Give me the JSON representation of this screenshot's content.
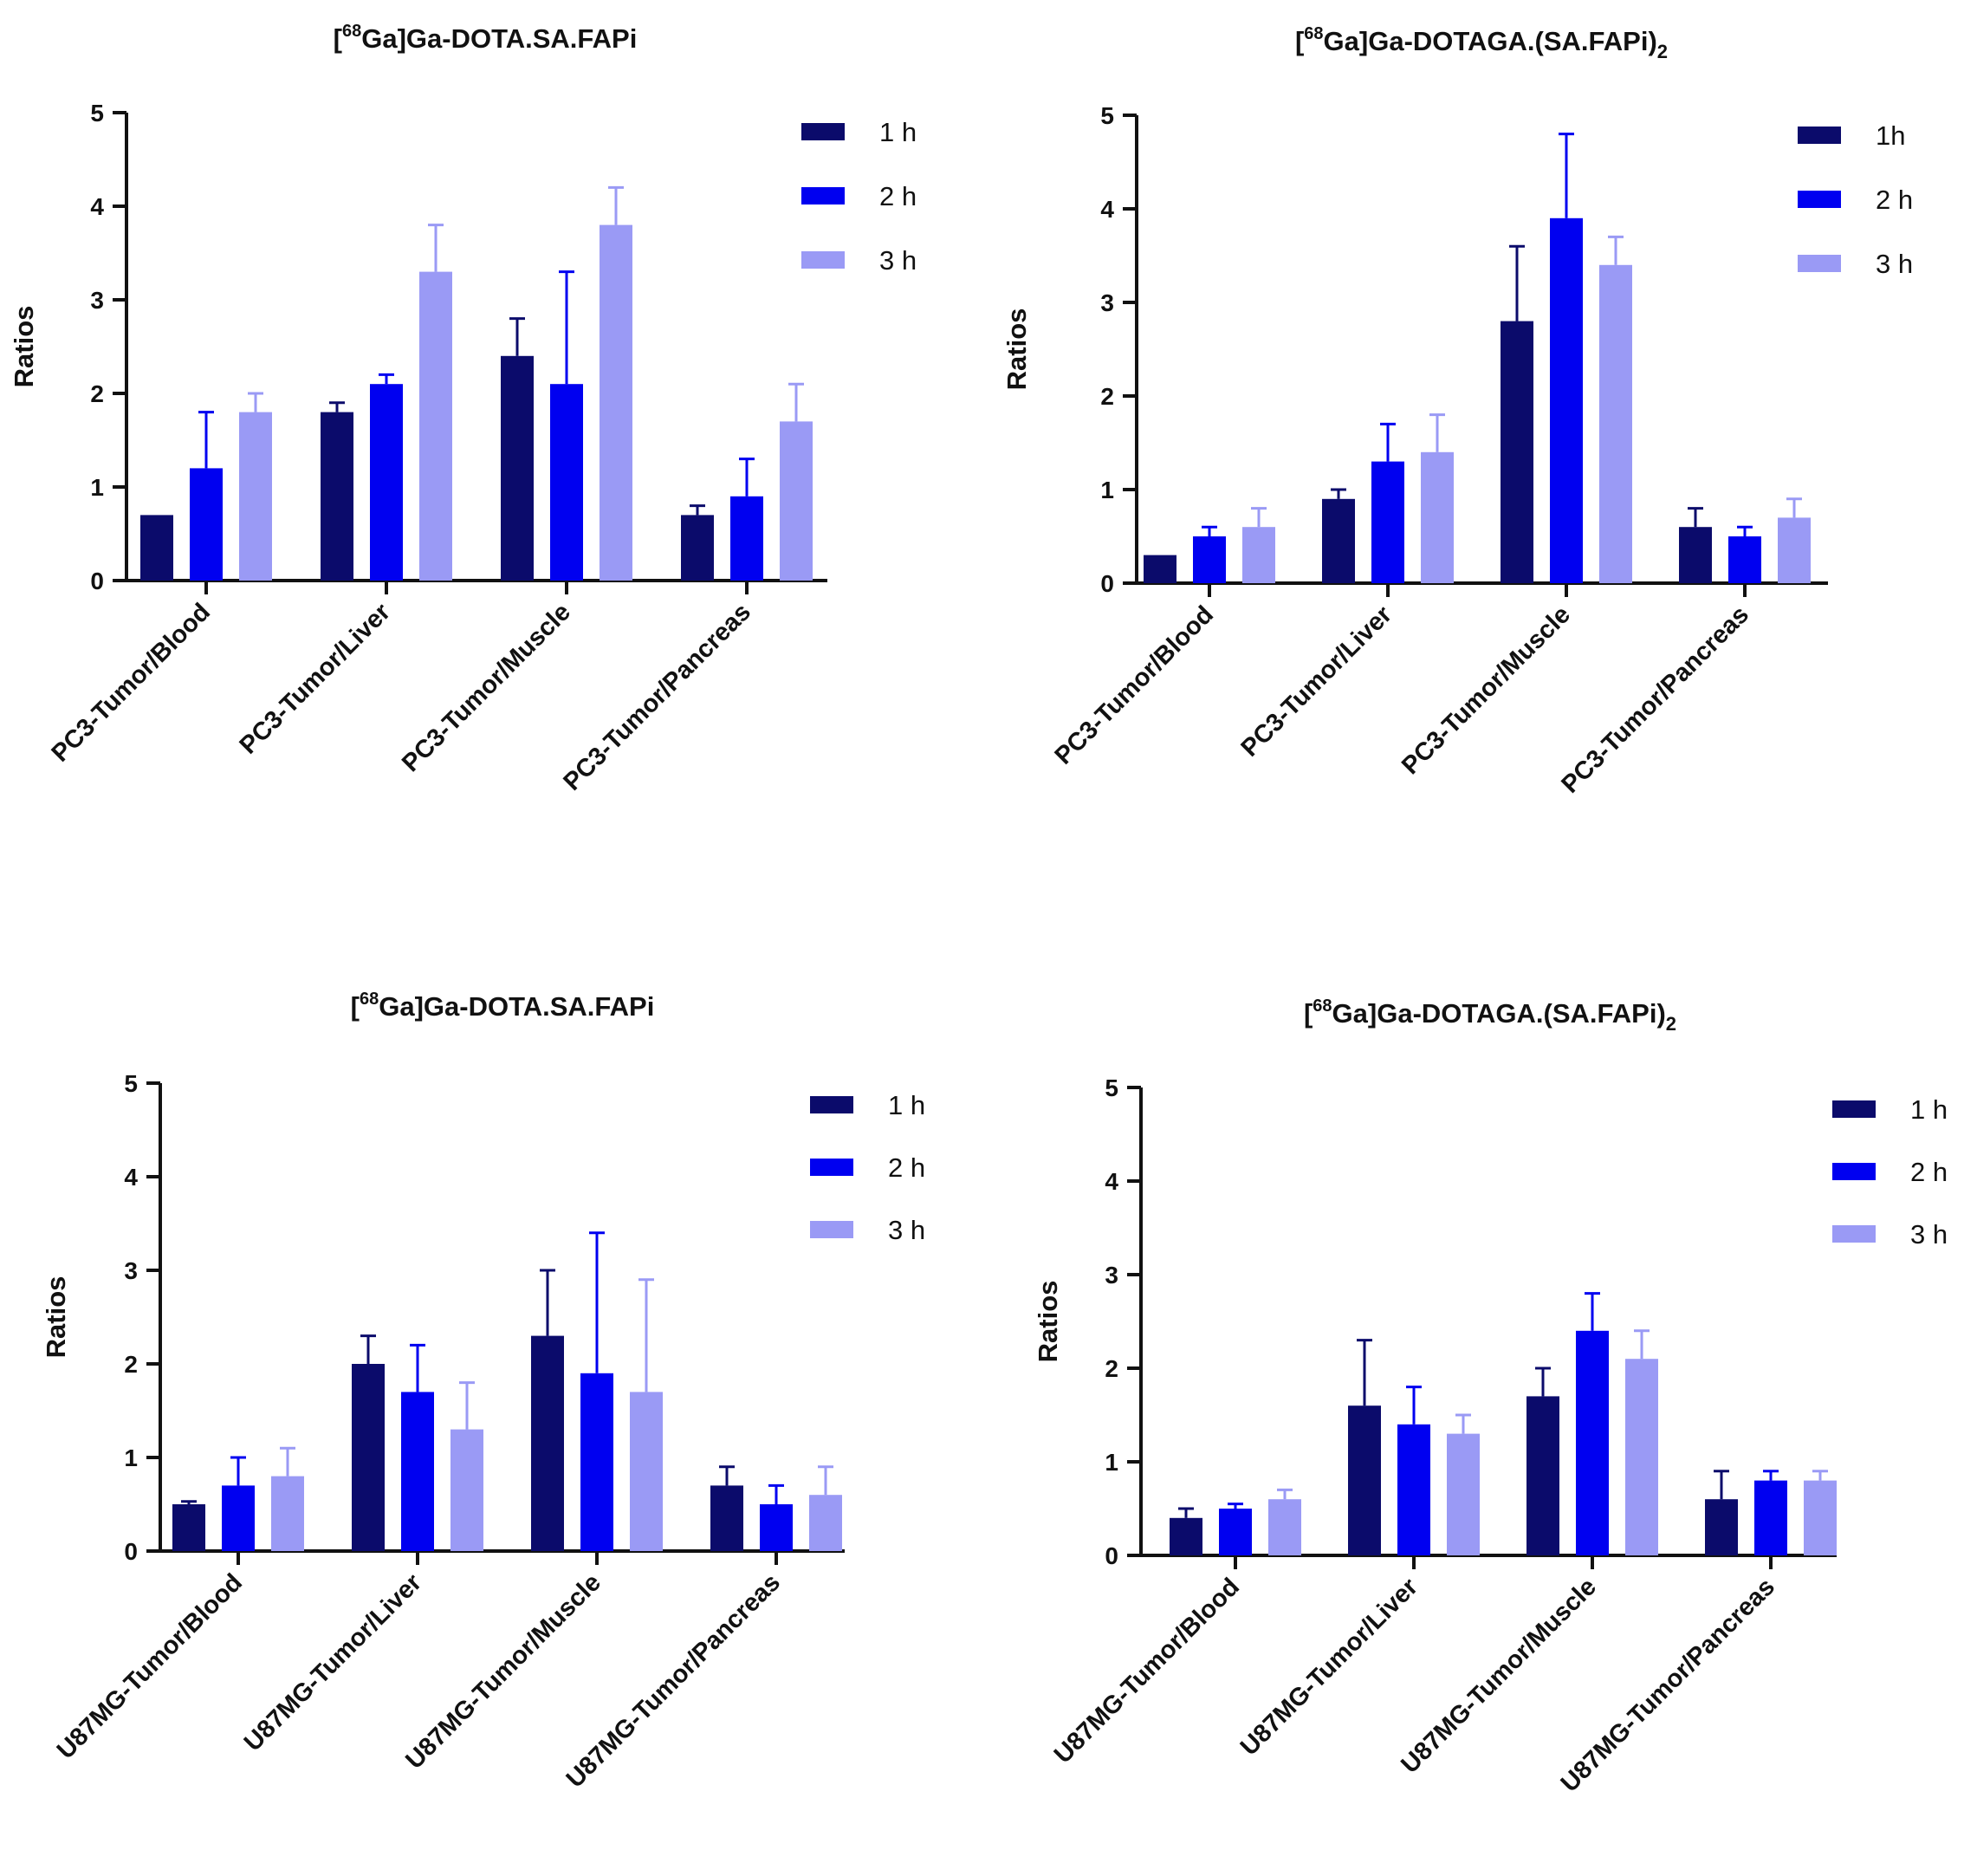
{
  "chart_data": [
    {
      "type": "bar",
      "title": {
        "pre": "[",
        "sup": "68",
        "main": "Ga]Ga-DOTA.SA.FAPi",
        "sub": ""
      },
      "xlabel": "",
      "ylabel": "Ratios",
      "ylim": [
        0,
        5
      ],
      "yticks": [
        "0",
        "1",
        "2",
        "3",
        "4",
        "5"
      ],
      "legend_position": "top-right",
      "categories": [
        "PC3-Tumor/Blood",
        "PC3-Tumor/Liver",
        "PC3-Tumor/Muscle",
        "PC3-Tumor/Pancreas"
      ],
      "series": [
        {
          "name": "1 h",
          "color": "#0b0b6b",
          "values": [
            0.7,
            1.8,
            2.4,
            0.7
          ],
          "errors": [
            0.0,
            0.1,
            0.4,
            0.1
          ]
        },
        {
          "name": "2 h",
          "color": "#0000f0",
          "values": [
            1.2,
            2.1,
            2.1,
            0.9
          ],
          "errors": [
            0.6,
            0.1,
            1.2,
            0.4
          ]
        },
        {
          "name": "3 h",
          "color": "#9a9af5",
          "values": [
            1.8,
            3.3,
            3.8,
            1.7
          ],
          "errors": [
            0.2,
            0.5,
            0.4,
            0.4
          ]
        }
      ]
    },
    {
      "type": "bar",
      "title": {
        "pre": "[",
        "sup": "68",
        "main": "Ga]Ga-DOTAGA.(SA.FAPi)",
        "sub": "2"
      },
      "xlabel": "",
      "ylabel": "Ratios",
      "ylim": [
        0,
        5
      ],
      "yticks": [
        "0",
        "1",
        "2",
        "3",
        "4",
        "5"
      ],
      "legend_position": "top-right",
      "categories": [
        "PC3-Tumor/Blood",
        "PC3-Tumor/Liver",
        "PC3-Tumor/Muscle",
        "PC3-Tumor/Pancreas"
      ],
      "series": [
        {
          "name": "1h",
          "color": "#0b0b6b",
          "values": [
            0.3,
            0.9,
            2.8,
            0.6
          ],
          "errors": [
            0.0,
            0.1,
            0.8,
            0.2
          ]
        },
        {
          "name": "2 h",
          "color": "#0000f0",
          "values": [
            0.5,
            1.3,
            3.9,
            0.5
          ],
          "errors": [
            0.1,
            0.4,
            0.9,
            0.1
          ]
        },
        {
          "name": "3 h",
          "color": "#9a9af5",
          "values": [
            0.6,
            1.4,
            3.4,
            0.7
          ],
          "errors": [
            0.2,
            0.4,
            0.3,
            0.2
          ]
        }
      ]
    },
    {
      "type": "bar",
      "title": {
        "pre": "[",
        "sup": "68",
        "main": "Ga]Ga-DOTA.SA.FAPi",
        "sub": ""
      },
      "xlabel": "",
      "ylabel": "Ratios",
      "ylim": [
        0,
        5
      ],
      "yticks": [
        "0",
        "1",
        "2",
        "3",
        "4",
        "5"
      ],
      "legend_position": "top-right",
      "categories": [
        "U87MG-Tumor/Blood",
        "U87MG-Tumor/Liver",
        "U87MG-Tumor/Muscle",
        "U87MG-Tumor/Pancreas"
      ],
      "series": [
        {
          "name": "1 h",
          "color": "#0b0b6b",
          "values": [
            0.5,
            2.0,
            2.3,
            0.7
          ],
          "errors": [
            0.03,
            0.3,
            0.7,
            0.2
          ]
        },
        {
          "name": "2 h",
          "color": "#0000f0",
          "values": [
            0.7,
            1.7,
            1.9,
            0.5
          ],
          "errors": [
            0.3,
            0.5,
            1.5,
            0.2
          ]
        },
        {
          "name": "3 h",
          "color": "#9a9af5",
          "values": [
            0.8,
            1.3,
            1.7,
            0.6
          ],
          "errors": [
            0.3,
            0.5,
            1.2,
            0.3
          ]
        }
      ]
    },
    {
      "type": "bar",
      "title": {
        "pre": "[",
        "sup": "68",
        "main": "Ga]Ga-DOTAGA.(SA.FAPi)",
        "sub": "2"
      },
      "xlabel": "",
      "ylabel": "Ratios",
      "ylim": [
        0,
        5
      ],
      "yticks": [
        "0",
        "1",
        "2",
        "3",
        "4",
        "5"
      ],
      "legend_position": "top-right",
      "categories": [
        "U87MG-Tumor/Blood",
        "U87MG-Tumor/Liver",
        "U87MG-Tumor/Muscle",
        "U87MG-Tumor/Pancreas"
      ],
      "series": [
        {
          "name": "1 h",
          "color": "#0b0b6b",
          "values": [
            0.4,
            1.6,
            1.7,
            0.6
          ],
          "errors": [
            0.1,
            0.7,
            0.3,
            0.3
          ]
        },
        {
          "name": "2 h",
          "color": "#0000f0",
          "values": [
            0.5,
            1.4,
            2.4,
            0.8
          ],
          "errors": [
            0.05,
            0.4,
            0.4,
            0.1
          ]
        },
        {
          "name": "3 h",
          "color": "#9a9af5",
          "values": [
            0.6,
            1.3,
            2.1,
            0.8
          ],
          "errors": [
            0.1,
            0.2,
            0.3,
            0.1
          ]
        }
      ]
    }
  ]
}
